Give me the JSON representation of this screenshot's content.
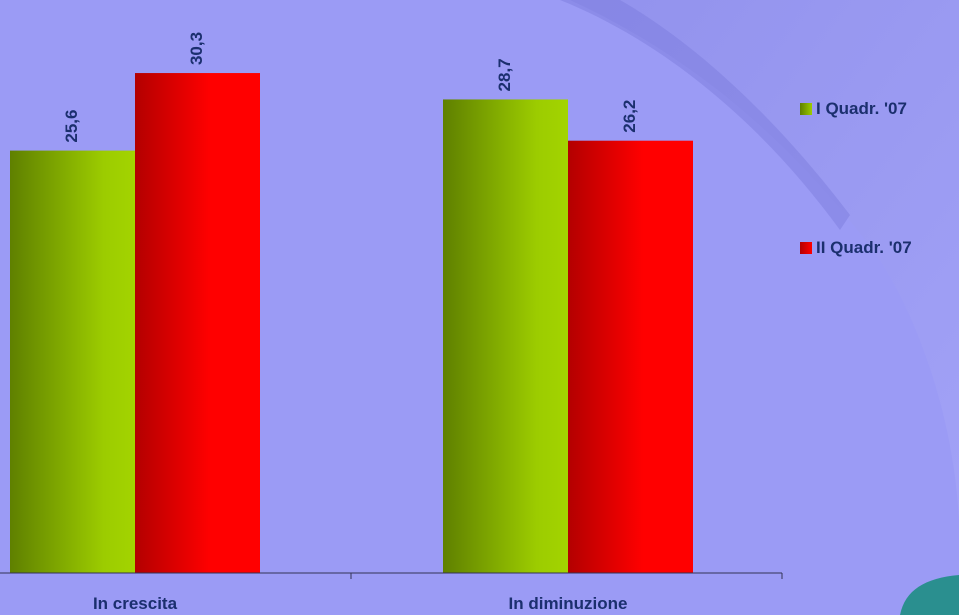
{
  "colors": {
    "background": "#9b9bf5",
    "text": "#1b2f6e",
    "series1_light": "#9ccc00",
    "series1_dark": "#5f8000",
    "series2_light": "#ff0000",
    "series2_dark": "#b30000"
  },
  "chart_data": {
    "type": "bar",
    "categories": [
      "In crescita",
      "In diminuzione"
    ],
    "series": [
      {
        "name": "I Quadr. '07",
        "values": [
          25.6,
          28.7
        ],
        "labels": [
          "25,6",
          "28,7"
        ]
      },
      {
        "name": "II Quadr. '07",
        "values": [
          30.3,
          26.2
        ],
        "labels": [
          "30,3",
          "26,2"
        ]
      }
    ],
    "ylim": [
      0,
      35
    ],
    "legend_position": "right",
    "grid": false
  }
}
